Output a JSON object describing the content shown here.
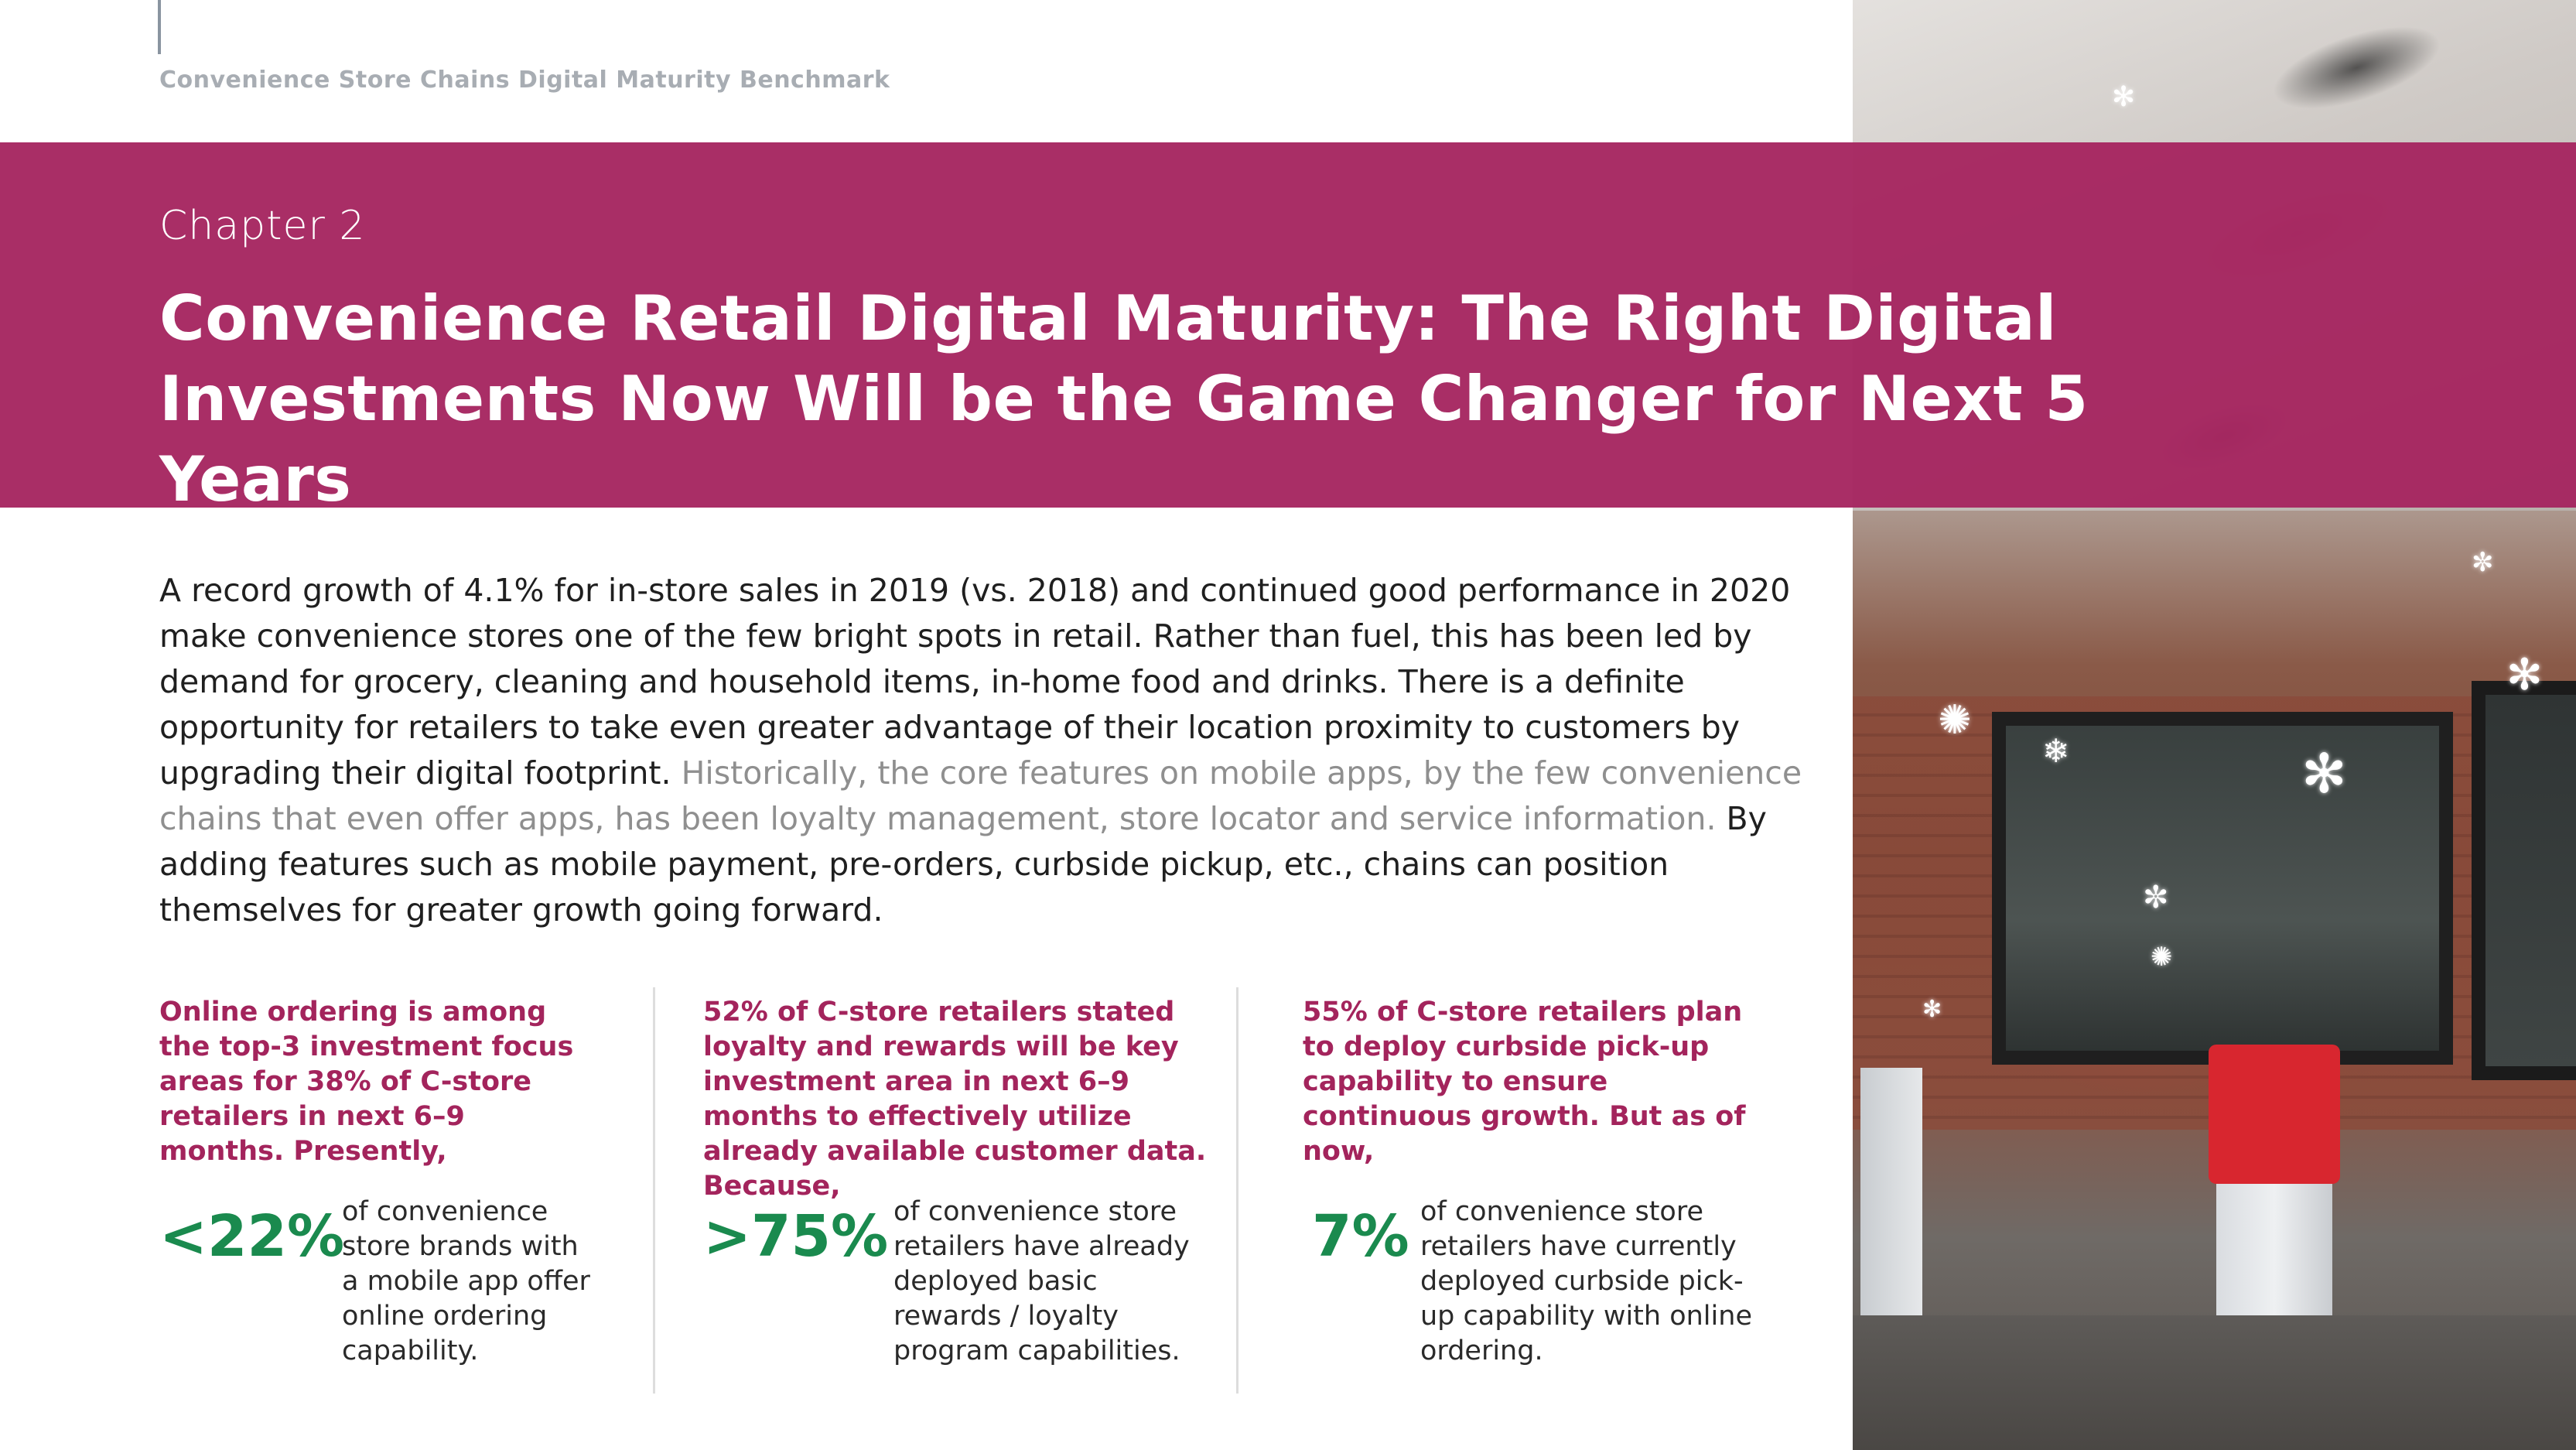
{
  "document": {
    "running_title": "Convenience Store Chains Digital Maturity Benchmark"
  },
  "chapter": {
    "label": "Chapter 2",
    "title_line1": "Convenience Retail Digital Maturity: The Right Digital",
    "title_line2": "Investments Now Will be the Game Changer for Next 5 Years"
  },
  "body": {
    "text_part1": "A record growth of 4.1% for in-store sales in 2019 (vs. 2018) and continued good performance in 2020 make convenience stores one of the few bright spots in retail. Rather than fuel, this has been led by demand for grocery, cleaning and household items, in-home food and drinks. There is a definite opportunity for retailers to take even greater advantage of their location proximity to customers by upgrading their digital footprint.",
    "text_muted": "Historically, the core features on mobile apps, by the few convenience chains that even offer apps, has been loyalty management, store locator and service information.",
    "text_part2": "By adding features such as mobile payment, pre-orders, curbside pickup, etc., chains can position themselves for greater growth going forward."
  },
  "stats": [
    {
      "lead": "Online ordering is among the top-3 investment focus areas for 38% of C-store retailers in next 6–9 months. Presently,",
      "figure": "<22%",
      "description": "of convenience store brands with a mobile app offer online ordering capability."
    },
    {
      "lead": "52% of C-store retailers stated loyalty and rewards will be key investment area in next 6–9 months to effectively utilize already available customer data. Because,",
      "figure": ">75%",
      "description": "of convenience store retailers have already deployed basic rewards / loyalty program capabilities."
    },
    {
      "lead": "55% of C-store retailers plan to deploy curbside pick-up capability to ensure continuous growth. But as of now,",
      "figure": "7%",
      "description": "of convenience store retailers have currently deployed curbside pick-up capability with online ordering."
    }
  ],
  "colors": {
    "band": "#a62560",
    "accent_text": "#a3245c",
    "figure_green": "#1a8a4e",
    "muted_text": "#8f8f8f"
  },
  "icons": {
    "photo": "storefront-snow-photo"
  }
}
